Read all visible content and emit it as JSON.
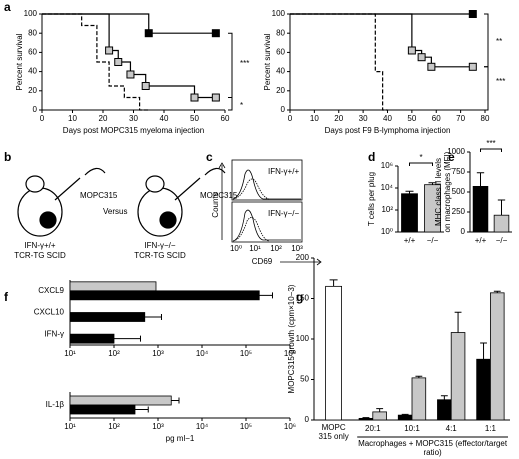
{
  "panel_labels": [
    "a",
    "b",
    "c",
    "d",
    "e",
    "f",
    "g"
  ],
  "diagram": {
    "tumor": "MOPC315",
    "versus": "Versus",
    "mice": [
      {
        "genotype": "IFN-γ+/+",
        "strain": "TCR-TG SCID"
      },
      {
        "genotype": "IFN-γ−/−",
        "strain": "TCR-TG SCID"
      }
    ]
  },
  "flow": {
    "labels": [
      "IFN-γ+/+",
      "IFN-γ−/−"
    ],
    "ylabel": "Counts",
    "xlabel": "CD69",
    "xticks": [
      "10⁰",
      "10¹",
      "10²",
      "10³"
    ]
  },
  "chart_data": [
    {
      "type": "survival",
      "xlabel": "Days post MOPC315 myeloma injection",
      "ylabel": "Percent survival",
      "xlim": [
        0,
        60
      ],
      "xticks": [
        0,
        10,
        20,
        30,
        40,
        50,
        60
      ],
      "ylim": [
        0,
        100
      ],
      "yticks": [
        0,
        20,
        40,
        60,
        80,
        100
      ],
      "annotations": [
        "***",
        "*"
      ],
      "series": [
        {
          "color": "#000000",
          "marker": "#000000",
          "x": [
            0,
            35,
            35,
            57
          ],
          "values": [
            100,
            100,
            80,
            80
          ]
        },
        {
          "color": "#000000",
          "marker": "#c8c8c8",
          "x": [
            0,
            22,
            22,
            25,
            25,
            29,
            29,
            34,
            34,
            50,
            50,
            57
          ],
          "values": [
            100,
            100,
            62,
            62,
            50,
            50,
            37,
            37,
            25,
            25,
            13,
            13
          ]
        },
        {
          "color": "#000000",
          "dash": true,
          "x": [
            0,
            13,
            13,
            18,
            18,
            22,
            22,
            27,
            27,
            32,
            32,
            35
          ],
          "values": [
            100,
            100,
            88,
            88,
            50,
            50,
            25,
            25,
            13,
            13,
            0,
            0
          ]
        }
      ]
    },
    {
      "type": "survival",
      "xlabel": "Days post F9 B-lymphoma injection",
      "ylabel": "Percent survival",
      "xlim": [
        0,
        80
      ],
      "xticks": [
        0,
        10,
        20,
        30,
        40,
        50,
        60,
        70,
        80
      ],
      "ylim": [
        0,
        100
      ],
      "yticks": [
        0,
        20,
        40,
        60,
        80,
        100
      ],
      "annotations": [
        "**",
        "***"
      ],
      "series": [
        {
          "color": "#000000",
          "marker": "#000000",
          "x": [
            0,
            75
          ],
          "values": [
            100,
            100
          ]
        },
        {
          "color": "#000000",
          "marker": "#c8c8c8",
          "x": [
            0,
            50,
            50,
            54,
            54,
            58,
            58,
            75
          ],
          "values": [
            100,
            100,
            62,
            62,
            55,
            55,
            45,
            45
          ]
        },
        {
          "color": "#000000",
          "dash": true,
          "x": [
            0,
            35,
            35,
            38,
            38,
            40
          ],
          "values": [
            100,
            100,
            40,
            40,
            0,
            0
          ]
        }
      ]
    },
    {
      "type": "bar",
      "ylabel": "T cells per plug",
      "log_y": true,
      "categories": [
        "+/+",
        "−/−"
      ],
      "ylim": [
        1,
        1000000
      ],
      "yticks": [
        {
          "value": 1,
          "label": "10⁰"
        },
        {
          "value": 100,
          "label": "10²"
        },
        {
          "value": 10000,
          "label": "10⁴"
        },
        {
          "value": 1000000,
          "label": "10⁶"
        }
      ],
      "annotations": [
        "*"
      ],
      "series": [
        {
          "color": "#000000",
          "values": [
            3000,
            null
          ],
          "errors": [
            2000,
            null
          ]
        },
        {
          "color": "#c8c8c8",
          "values": [
            null,
            20000
          ],
          "errors": [
            null,
            10000
          ]
        }
      ]
    },
    {
      "type": "bar",
      "ylabel": [
        "MHC class II levels",
        "on macrophages (MFI)"
      ],
      "categories": [
        "+/+",
        "−/−"
      ],
      "ylim": [
        0,
        1000
      ],
      "yticks": [
        0,
        250,
        500,
        750,
        1000
      ],
      "annotations": [
        "***"
      ],
      "series": [
        {
          "color": "#000000",
          "values": [
            570,
            null
          ],
          "errors": [
            170,
            null
          ]
        },
        {
          "color": "#c8c8c8",
          "values": [
            null,
            210
          ],
          "errors": [
            null,
            190
          ]
        }
      ]
    },
    {
      "type": "hbar",
      "log_x": true,
      "categories": [
        "CXCL9",
        "CXCL10",
        "IFN-γ"
      ],
      "xlim": [
        10,
        1000000
      ],
      "xticks": [
        {
          "value": 10,
          "label": "10¹"
        },
        {
          "value": 100,
          "label": "10²"
        },
        {
          "value": 1000,
          "label": "10³"
        },
        {
          "value": 10000,
          "label": "10⁴"
        },
        {
          "value": 100000,
          "label": "10⁵"
        },
        {
          "value": 1000000,
          "label": "10⁶"
        }
      ],
      "series": [
        {
          "color": "#c8c8c8",
          "values": [
            900,
            null,
            null
          ],
          "errors": [
            null,
            null,
            null
          ]
        },
        {
          "color": "#000000",
          "values": [
            200000,
            500,
            100
          ],
          "errors": [
            200000,
            700,
            300
          ]
        }
      ]
    },
    {
      "type": "hbar",
      "log_x": true,
      "xlabel": "pg ml−1",
      "categories": [
        "IL-1β"
      ],
      "xlim": [
        10,
        1000000
      ],
      "xticks": [
        {
          "value": 10,
          "label": "10¹"
        },
        {
          "value": 100,
          "label": "10²"
        },
        {
          "value": 1000,
          "label": "10³"
        },
        {
          "value": 10000,
          "label": "10⁴"
        },
        {
          "value": 100000,
          "label": "10⁵"
        },
        {
          "value": 1000000,
          "label": "10⁶"
        }
      ],
      "series": [
        {
          "color": "#c8c8c8",
          "values": [
            2000
          ],
          "errors": [
            1000
          ]
        },
        {
          "color": "#000000",
          "values": [
            300
          ],
          "errors": [
            300
          ]
        }
      ]
    },
    {
      "type": "bar",
      "ylabel": "MOPC315 growth (cpm×10−3)",
      "xlabel": "Macrophages + MOPC315 (effector/target ratio)",
      "categories": [
        "MOPC 315 only",
        "20:1",
        "10:1",
        "4:1",
        "1:1"
      ],
      "ylim": [
        0,
        200
      ],
      "yticks": [
        0,
        50,
        100,
        150,
        200
      ],
      "series": [
        {
          "color": "#ffffff",
          "values": [
            165,
            null,
            null,
            null,
            null
          ],
          "errors": [
            8,
            null,
            null,
            null,
            null
          ]
        },
        {
          "color": "#000000",
          "values": [
            null,
            2,
            6,
            25,
            75
          ],
          "errors": [
            null,
            1,
            1,
            5,
            20
          ]
        },
        {
          "color": "#c8c8c8",
          "values": [
            null,
            10,
            52,
            108,
            157
          ],
          "errors": [
            null,
            4,
            2,
            25,
            2
          ]
        }
      ]
    }
  ]
}
